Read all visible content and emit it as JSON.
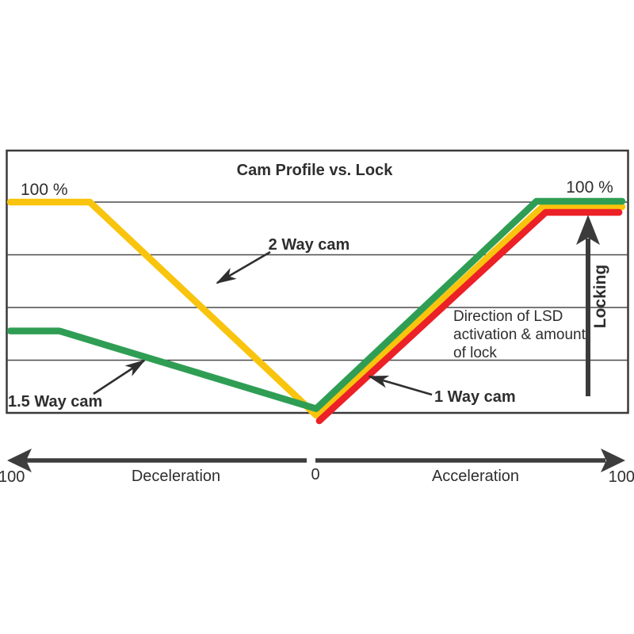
{
  "title": "Cam Profile vs. Lock",
  "colors": {
    "yellow": "#F9C40D",
    "green": "#2F9E54",
    "red": "#EC2027",
    "dark": "#3B3B3B",
    "gridline": "#4A4A4A",
    "text": "#2E2E2E"
  },
  "labels": {
    "left_100_pct": "100 %",
    "right_100_pct": "100 %",
    "two_way_cam": "2 Way cam",
    "one_five_way_cam": "1.5 Way cam",
    "one_way_cam": "1 Way cam",
    "direction_line1": "Direction of LSD",
    "direction_line2": "activation & amount",
    "direction_line3": "of lock",
    "locking": "Locking"
  },
  "axis": {
    "left_value": "100",
    "left_label": "Deceleration",
    "zero_value": "0",
    "right_label": "Acceleration",
    "right_value": "100"
  },
  "chart_data": {
    "type": "line",
    "title": "Cam Profile vs. Lock",
    "x_axis": {
      "range": [
        -100,
        100
      ],
      "left_end_label": "100",
      "center_label": "0",
      "right_end_label": "100",
      "left_region_label": "Deceleration",
      "right_region_label": "Acceleration"
    },
    "y_axis": {
      "unit": "% lock",
      "range": [
        0,
        100
      ],
      "top_label_left": "100 %",
      "top_label_right": "100 %",
      "gridlines_percent": [
        25,
        50,
        75,
        100
      ]
    },
    "annotations": [
      "2 Way cam",
      "1.5 Way cam",
      "1 Way cam",
      "Direction of LSD activation & amount of lock",
      "Locking"
    ],
    "series": [
      {
        "name": "2 Way cam",
        "color_key": "yellow",
        "points": [
          [
            -100,
            100
          ],
          [
            -74,
            100
          ],
          [
            0,
            0
          ],
          [
            74,
            100
          ],
          [
            100,
            100
          ]
        ],
        "dy": [
          0,
          0,
          3,
          6,
          6
        ]
      },
      {
        "name": "1.5 Way cam",
        "color_key": "green",
        "points": [
          [
            -100,
            40
          ],
          [
            -84,
            40
          ],
          [
            0,
            2
          ],
          [
            72,
            100
          ],
          [
            100,
            100
          ]
        ],
        "dy": [
          3,
          3,
          0,
          -1,
          -1
        ]
      },
      {
        "name": "1 Way cam",
        "color_key": "red",
        "points": [
          [
            1,
            0
          ],
          [
            75,
            100
          ],
          [
            99,
            100
          ]
        ],
        "dy": [
          10,
          13,
          13
        ]
      }
    ]
  }
}
